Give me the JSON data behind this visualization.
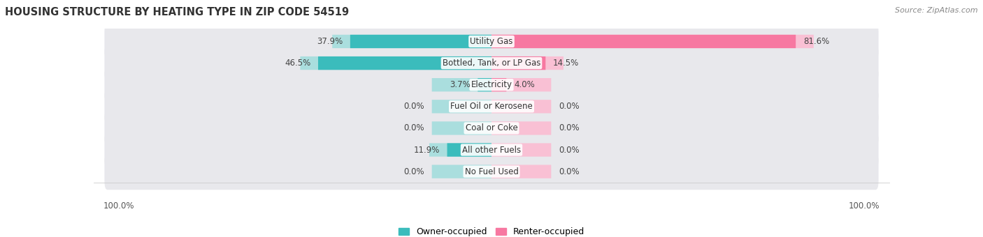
{
  "title": "HOUSING STRUCTURE BY HEATING TYPE IN ZIP CODE 54519",
  "source": "Source: ZipAtlas.com",
  "categories": [
    "Utility Gas",
    "Bottled, Tank, or LP Gas",
    "Electricity",
    "Fuel Oil or Kerosene",
    "Coal or Coke",
    "All other Fuels",
    "No Fuel Used"
  ],
  "owner_values": [
    37.9,
    46.5,
    3.7,
    0.0,
    0.0,
    11.9,
    0.0
  ],
  "renter_values": [
    81.6,
    14.5,
    4.0,
    0.0,
    0.0,
    0.0,
    0.0
  ],
  "owner_color": "#3bbcbc",
  "renter_color": "#f778a1",
  "owner_color_light": "#aadede",
  "renter_color_light": "#f9c0d4",
  "row_bg_color": "#e8e8ec",
  "max_value": 100.0,
  "title_fontsize": 10.5,
  "label_fontsize": 8.5,
  "legend_fontsize": 9,
  "source_fontsize": 8,
  "fig_width": 14.06,
  "fig_height": 3.4,
  "dpi": 100
}
